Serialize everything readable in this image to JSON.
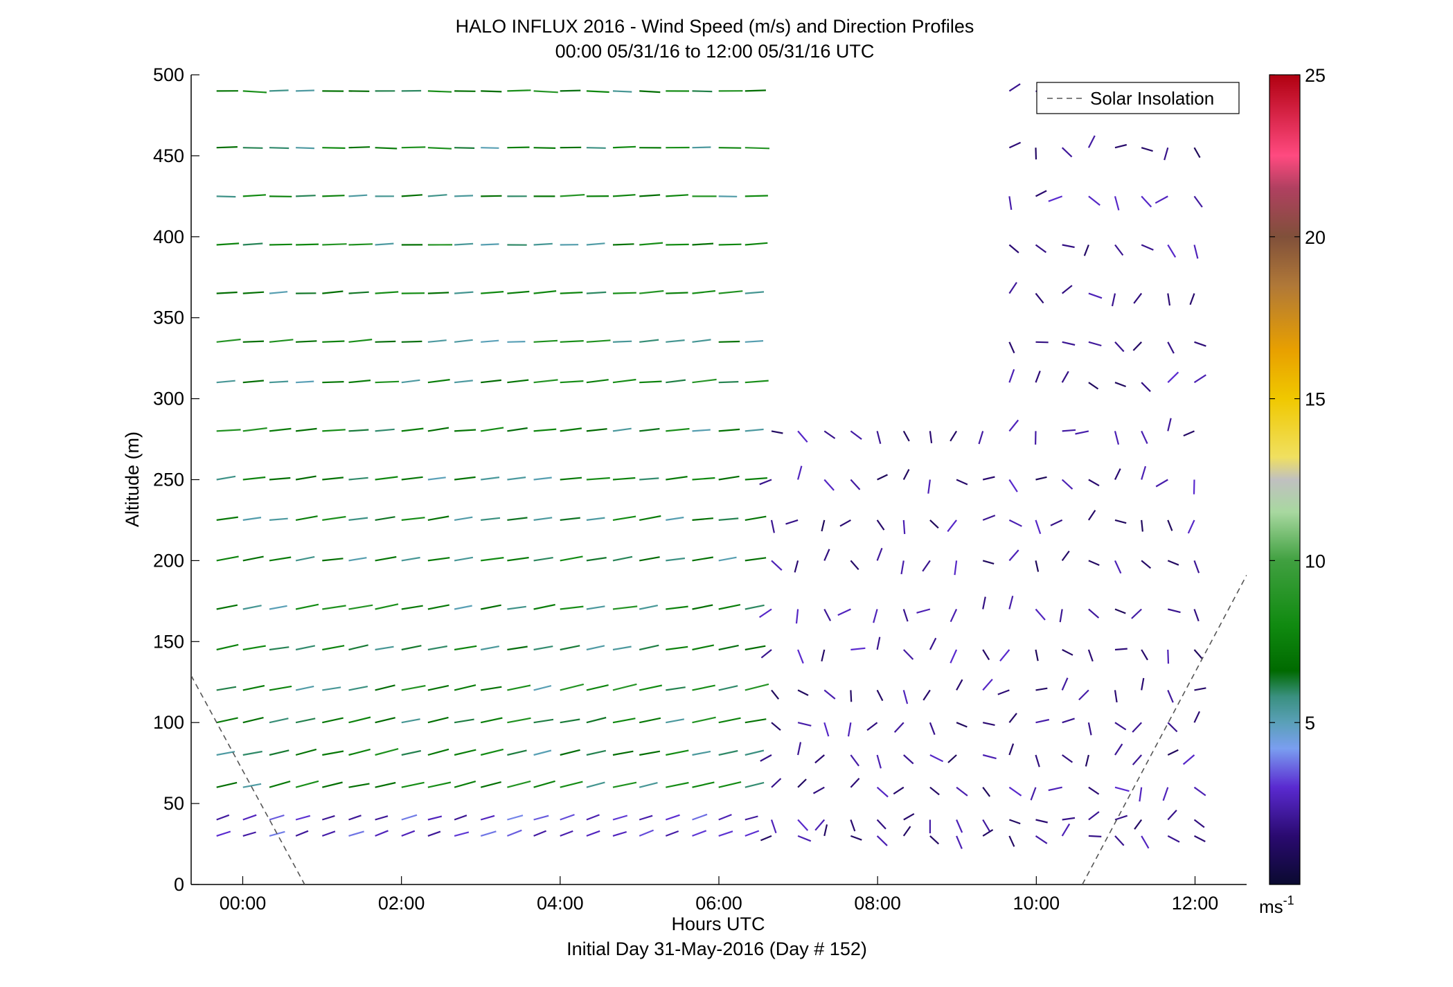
{
  "chart_data": {
    "type": "scatter",
    "subtype": "wind-barb-profile",
    "title": "HALO INFLUX 2016 - Wind Speed (m/s) and Direction Profiles",
    "subtitle": "00:00 05/31/16 to 12:00 05/31/16  UTC",
    "xlabel": "Hours UTC",
    "xlabel2": "Initial Day 31-May-2016 (Day # 152)",
    "ylabel": "Altitude (m)",
    "xlim": [
      -0.65,
      12.65
    ],
    "ylim": [
      0,
      500
    ],
    "x_ticks": [
      0,
      2,
      4,
      6,
      8,
      10,
      12
    ],
    "x_tick_labels": [
      "00:00",
      "02:00",
      "04:00",
      "06:00",
      "08:00",
      "10:00",
      "12:00"
    ],
    "y_ticks": [
      0,
      50,
      100,
      150,
      200,
      250,
      300,
      350,
      400,
      450,
      500
    ],
    "y_tick_labels": [
      "0",
      "50",
      "100",
      "150",
      "200",
      "250",
      "300",
      "350",
      "400",
      "450",
      "500"
    ],
    "legend": {
      "location": "top-right",
      "entries": [
        "Solar Insolation"
      ]
    },
    "colorbar": {
      "range": [
        0,
        25
      ],
      "ticks": [
        5,
        10,
        15,
        20,
        25
      ],
      "tick_labels": [
        "5",
        "10",
        "15",
        "20",
        "25"
      ],
      "unit_label": "ms",
      "unit_exponent": "-1",
      "colors": {
        "0": "#0a0a30",
        "1.5": "#2a0a70",
        "3": "#5a2ad0",
        "4.2": "#7a9ef0",
        "5": "#5aa0b8",
        "5.8": "#3a9080",
        "6.6": "#006a00",
        "8": "#108a10",
        "10": "#40a040",
        "11.5": "#a8d8a0",
        "12.5": "#c0c0c0",
        "13.2": "#f0e060",
        "15": "#f0c800",
        "16.5": "#e8a000",
        "18.5": "#b07838",
        "20": "#80503a",
        "21.5": "#b04060",
        "22.5": "#ff4a80",
        "25": "#b00010"
      }
    },
    "series": [
      {
        "name": "Solar Insolation",
        "style": "dashed",
        "color": "#555555",
        "x": [
          -0.65,
          0.78
        ],
        "y": [
          129,
          0
        ]
      },
      {
        "name": "Solar Insolation",
        "style": "dashed",
        "color": "#555555",
        "x": [
          10.58,
          12.65
        ],
        "y": [
          0,
          191
        ]
      }
    ],
    "wind_profile_summary": {
      "time_step_hours": 0.333,
      "altitude_levels_m": [
        30,
        40,
        60,
        80,
        100,
        120,
        145,
        170,
        200,
        225,
        250,
        280,
        310,
        335,
        365,
        395,
        425,
        455,
        490
      ],
      "segments": [
        {
          "hours": [
            0,
            6.5
          ],
          "altitude_m": [
            60,
            500
          ],
          "speed_ms": [
            5,
            9
          ],
          "direction": "southwesterly to westerly"
        },
        {
          "hours": [
            0,
            6.5
          ],
          "altitude_m": [
            25,
            50
          ],
          "speed_ms": [
            2,
            4
          ],
          "direction": "southwesterly"
        },
        {
          "hours": [
            6.5,
            10
          ],
          "altitude_m": [
            25,
            300
          ],
          "speed_ms": [
            1,
            3
          ],
          "direction": "variable"
        },
        {
          "hours": [
            10,
            12
          ],
          "altitude_m": [
            25,
            500
          ],
          "speed_ms": [
            1,
            3
          ],
          "direction": "variable"
        }
      ]
    }
  }
}
